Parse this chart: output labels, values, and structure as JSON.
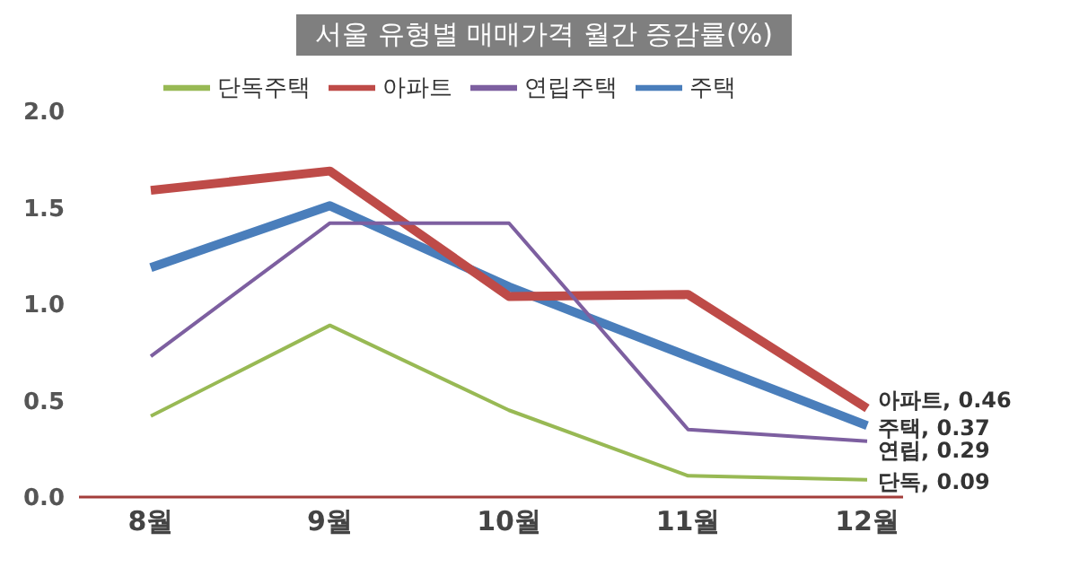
{
  "chart_data": {
    "type": "line",
    "title": "서울 유형별 매매가격 월간 증감률(%)",
    "categories": [
      "8월",
      "9월",
      "10월",
      "11월",
      "12월"
    ],
    "series": [
      {
        "name": "주택",
        "color": "#4a7ebb",
        "values": [
          1.19,
          1.51,
          1.09,
          0.73,
          0.37
        ],
        "value_labels": [
          null,
          null,
          null,
          null,
          "주택, 0.37"
        ]
      },
      {
        "name": "아파트",
        "color": "#be4b48",
        "values": [
          1.59,
          1.69,
          1.04,
          1.05,
          0.46
        ],
        "value_labels": [
          null,
          null,
          null,
          null,
          "아파트, 0.46"
        ]
      },
      {
        "name": "단독주택",
        "color": "#98b954",
        "values": [
          0.42,
          0.89,
          0.45,
          0.11,
          0.09
        ],
        "value_labels": [
          null,
          null,
          null,
          null,
          "단독, 0.09"
        ]
      },
      {
        "name": "연립주택",
        "color": "#7d5fa0",
        "values": [
          0.73,
          1.42,
          1.42,
          0.35,
          0.29
        ],
        "value_labels": [
          null,
          null,
          null,
          null,
          "연립, 0.29"
        ]
      }
    ],
    "ylim": [
      0,
      2
    ],
    "yticks": [
      {
        "value": 0,
        "label": "0.0"
      },
      {
        "value": 0.5,
        "label": "0.5"
      },
      {
        "value": 1,
        "label": "1.0"
      },
      {
        "value": 1.5,
        "label": "1.5"
      },
      {
        "value": 2,
        "label": "2.0"
      }
    ],
    "grid": false,
    "legend": "top",
    "marker": "none",
    "line_style": "solid"
  }
}
